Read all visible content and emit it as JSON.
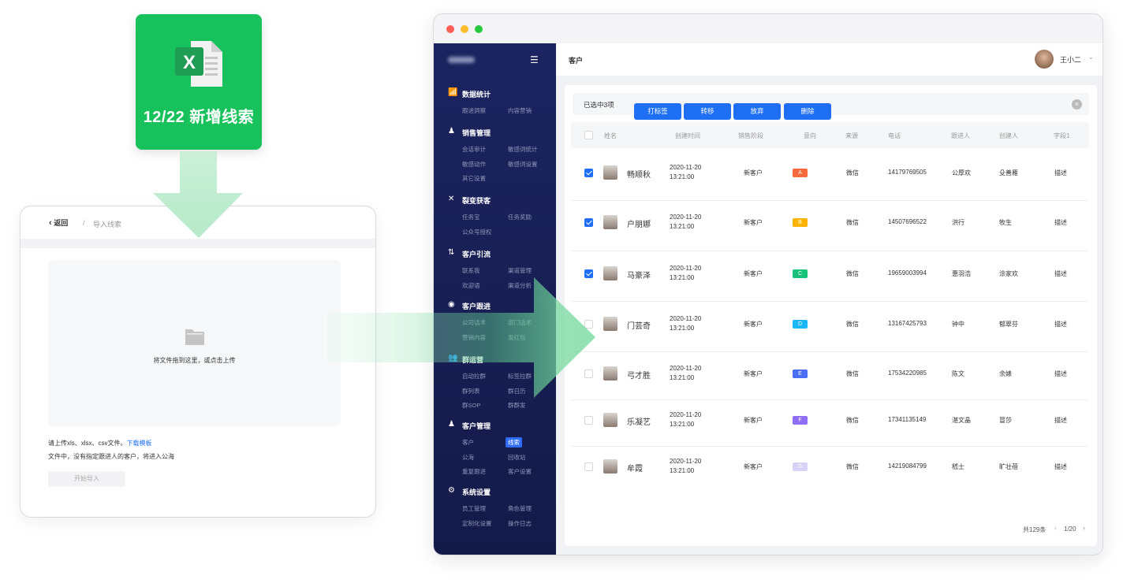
{
  "excel_card": {
    "icon": "excel-file-icon",
    "title": "12/22 新增线索",
    "color": "#17c15b"
  },
  "import_window": {
    "back": "返回",
    "separator": "/",
    "breadcrumb": "导入线索",
    "dropzone_text": "将文件拖到这里，或点击上传",
    "hint1": "请上传xls、xlsx、csv文件。",
    "download_link": "下载模板",
    "hint2": "文件中，没有指定跟进人的客户，将进入公海",
    "start_button": "开始导入"
  },
  "app": {
    "page_title": "客户",
    "user": {
      "name": "王小二"
    },
    "sidebar": [
      {
        "label": "数据统计",
        "icon": "chart-icon",
        "items": [
          "跟进洞察",
          "内容营销"
        ]
      },
      {
        "label": "销售管理",
        "icon": "user-icon",
        "items": [
          "会话审计",
          "敏感词统计",
          "敏感动作",
          "敏感词设置",
          "其它设置"
        ]
      },
      {
        "label": "裂变获客",
        "icon": "share-icon",
        "items": [
          "任务宝",
          "任务奖励",
          "公众号授权"
        ]
      },
      {
        "label": "客户引流",
        "icon": "arrows-icon",
        "items": [
          "联系我",
          "渠道管理",
          "欢迎语",
          "渠道分析"
        ]
      },
      {
        "label": "客户跟进",
        "icon": "target-icon",
        "items": [
          "公司话术",
          "部门话术",
          "营销内容",
          "发红包"
        ]
      },
      {
        "label": "群运营",
        "icon": "group-icon",
        "items": [
          "自动拉群",
          "标签拉群",
          "群列表",
          "群日历",
          "群SOP",
          "群群发"
        ]
      },
      {
        "label": "客户管理",
        "icon": "user-gear-icon",
        "items": [
          "客户",
          "线索",
          "公海",
          "回收站",
          "重复跟进",
          "客户设置"
        ],
        "active": "线索"
      },
      {
        "label": "系统设置",
        "icon": "settings-icon",
        "items": [
          "员工管理",
          "角色管理",
          "定制化设置",
          "操作日志"
        ]
      }
    ],
    "selection": {
      "text": "已选中3项",
      "actions": [
        "打标签",
        "转移",
        "放弃",
        "删除"
      ]
    },
    "columns": [
      "姓名",
      "创建时间",
      "销售阶段",
      "意向",
      "来源",
      "电话",
      "跟进人",
      "创建人",
      "字段1"
    ],
    "rows": [
      {
        "checked": true,
        "name": "畅顺秋",
        "date": "2020-11-20",
        "time": "13:21:00",
        "stage": "新客户",
        "intent": "A",
        "intent_color": "#f4683c",
        "source": "微信",
        "phone": "14179769505",
        "follower": "公厚欢",
        "creator": "殳善雁",
        "field1": "描述"
      },
      {
        "checked": true,
        "name": "户朋娜",
        "date": "2020-11-20",
        "time": "13:21:00",
        "stage": "新客户",
        "intent": "B",
        "intent_color": "#fdb300",
        "source": "微信",
        "phone": "14507696522",
        "follower": "洪行",
        "creator": "牧生",
        "field1": "描述"
      },
      {
        "checked": true,
        "name": "马豪泽",
        "date": "2020-11-20",
        "time": "13:21:00",
        "stage": "新客户",
        "intent": "C",
        "intent_color": "#18c27a",
        "source": "微信",
        "phone": "19659003994",
        "follower": "惠羽浩",
        "creator": "涂家欢",
        "field1": "描述"
      },
      {
        "checked": false,
        "name": "门芸奇",
        "date": "2020-11-20",
        "time": "13:21:00",
        "stage": "新客户",
        "intent": "D",
        "intent_color": "#1cb8f5",
        "source": "微信",
        "phone": "13167425793",
        "follower": "钟中",
        "creator": "郁翠芬",
        "field1": "描述"
      },
      {
        "checked": false,
        "name": "弓才胜",
        "date": "2020-11-20",
        "time": "13:21:00",
        "stage": "新客户",
        "intent": "E",
        "intent_color": "#4c6ef5",
        "source": "微信",
        "phone": "17534220985",
        "follower": "陈文",
        "creator": "余婊",
        "field1": "描述"
      },
      {
        "checked": false,
        "name": "乐凝艺",
        "date": "2020-11-20",
        "time": "13:21:00",
        "stage": "新客户",
        "intent": "F",
        "intent_color": "#8f6df5",
        "source": "微信",
        "phone": "17341135149",
        "follower": "湛文晶",
        "creator": "冒莎",
        "field1": "描述"
      },
      {
        "checked": false,
        "name": "牟霞",
        "date": "2020-11-20",
        "time": "13:21:00",
        "stage": "新客户",
        "intent": "G",
        "intent_color": "#d8d3f6",
        "source": "微信",
        "phone": "14219084799",
        "follower": "嵇士",
        "creator": "旷壮蓓",
        "field1": "描述"
      }
    ],
    "footer": {
      "total": "共129条",
      "page": "1/20"
    }
  }
}
